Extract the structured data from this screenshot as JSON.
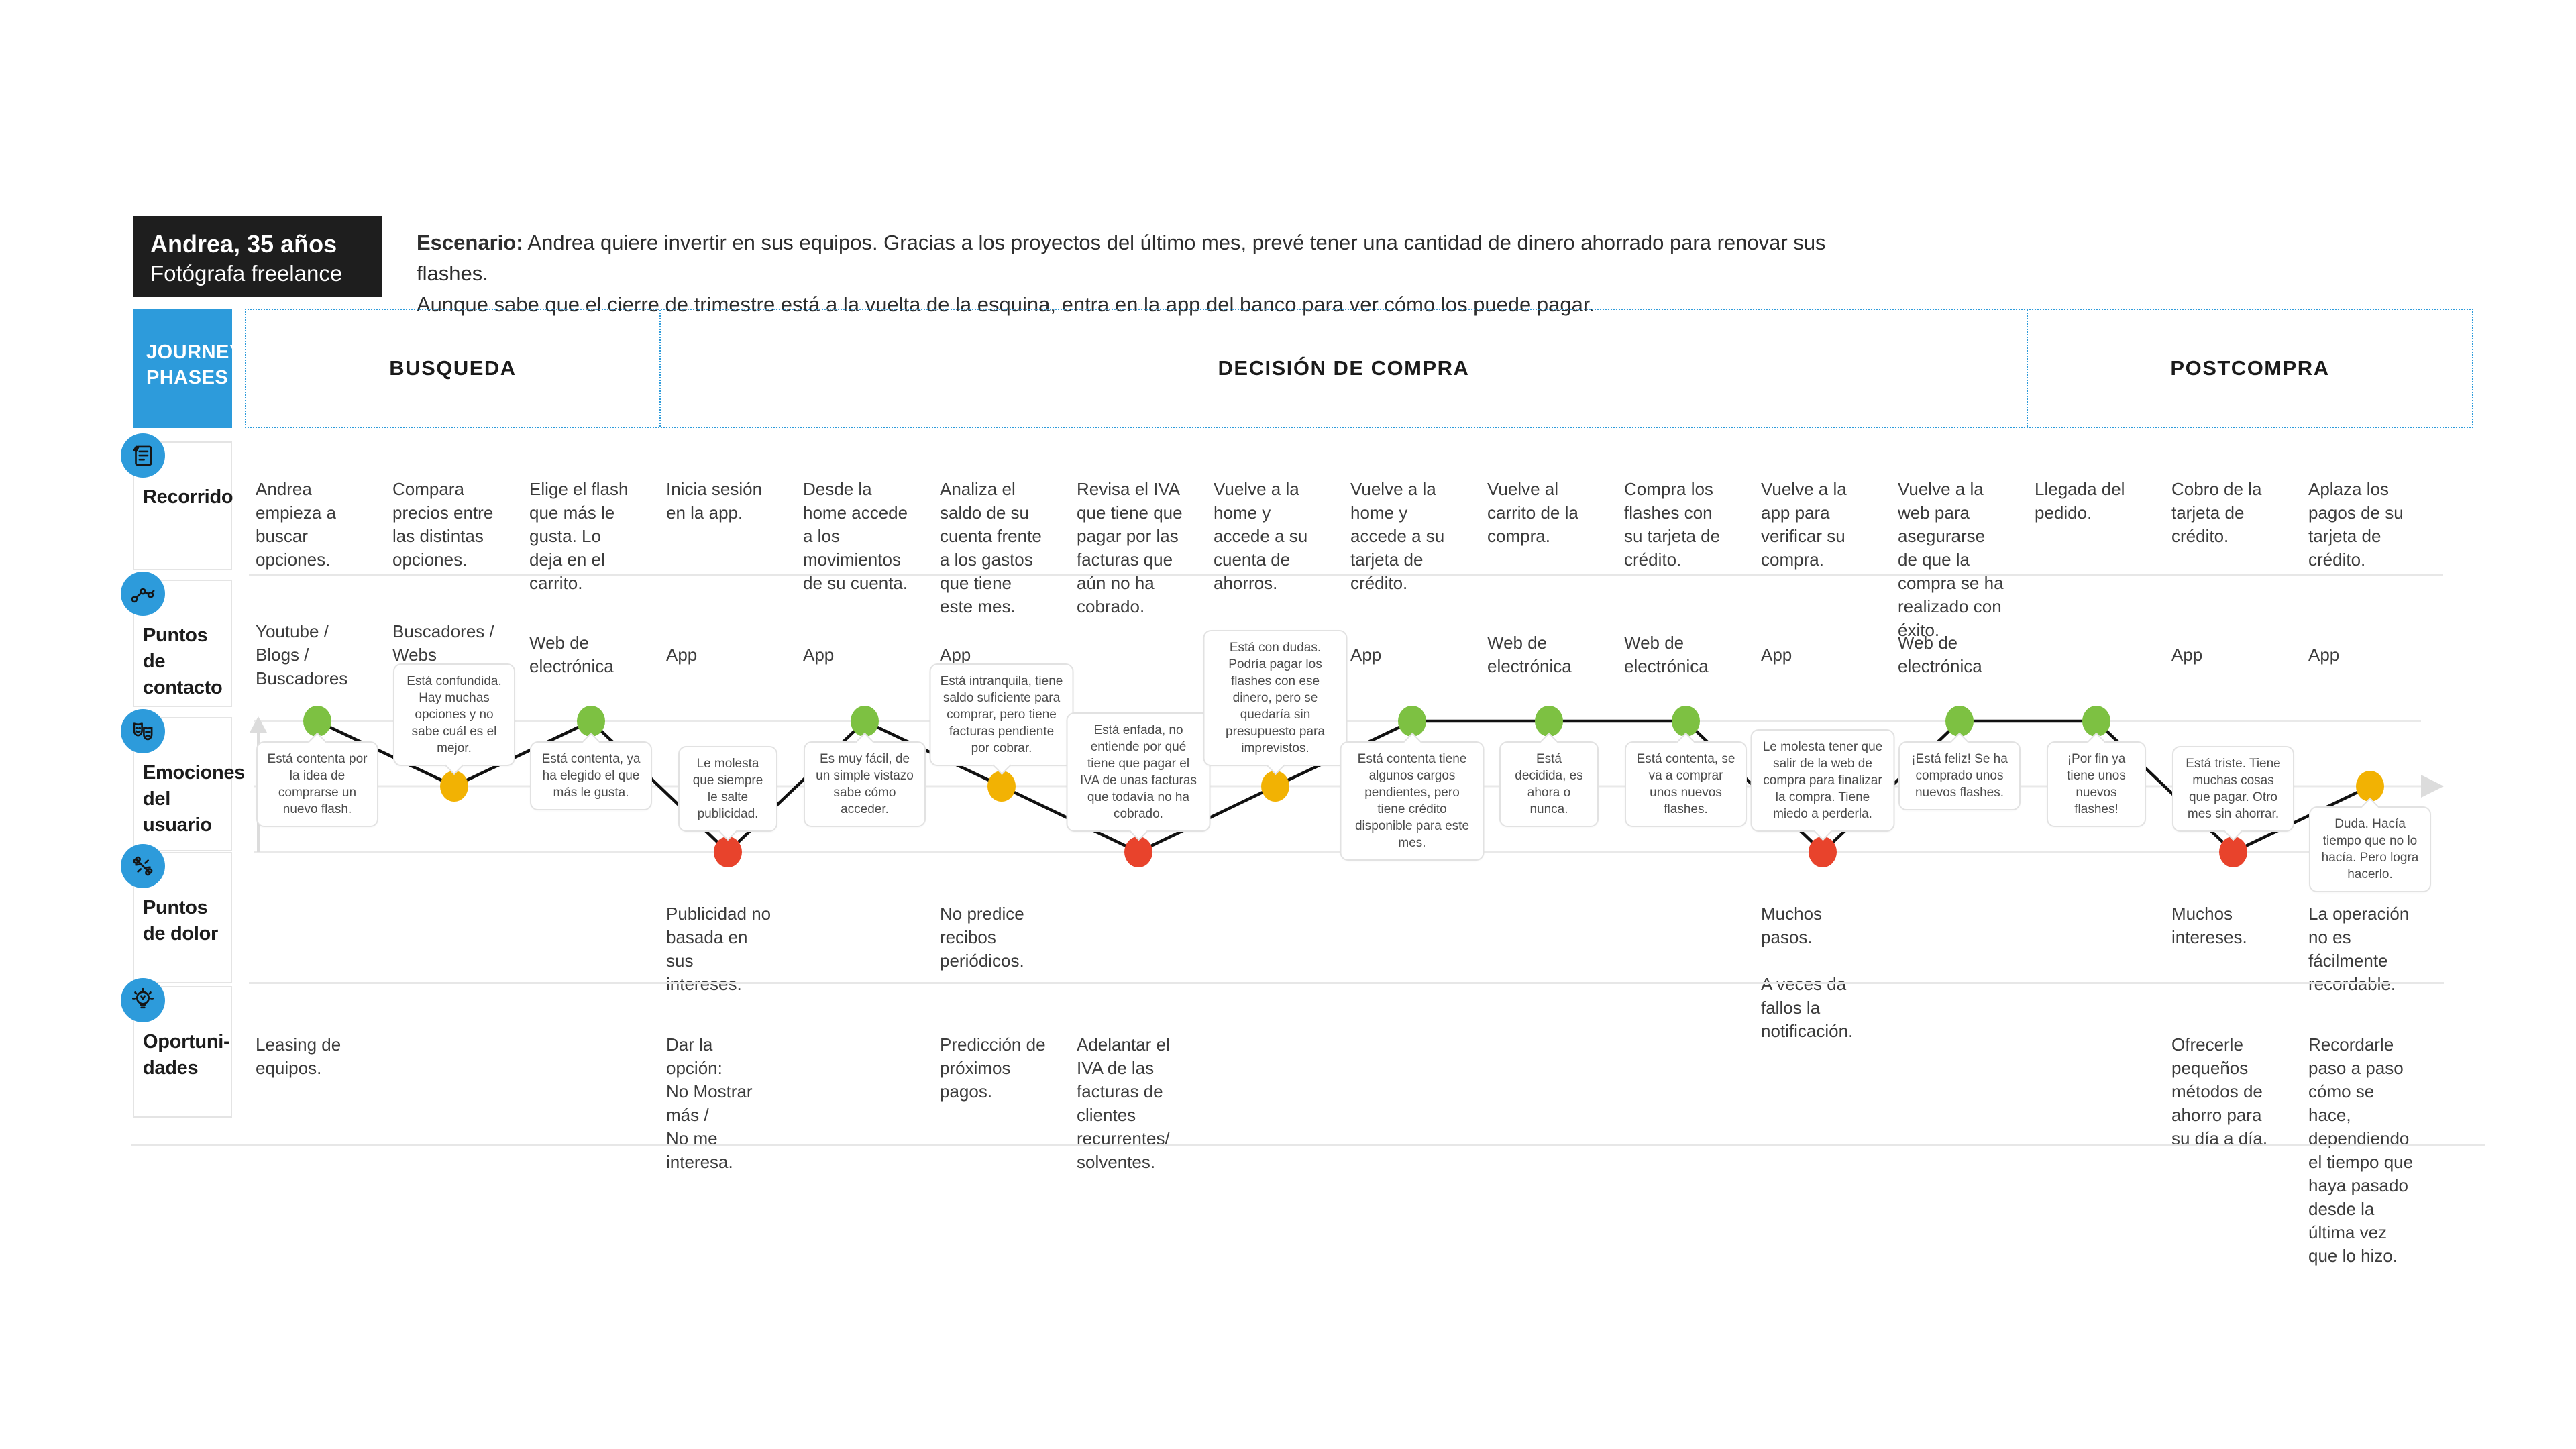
{
  "persona": {
    "name": "Andrea, 35 años",
    "role": "Fotógrafa freelance"
  },
  "scenario": {
    "label": "Escenario:",
    "line1": "Andrea quiere invertir en sus equipos. Gracias a los proyectos del último mes, prevé tener una cantidad de dinero ahorrado para renovar sus flashes.",
    "line2": "Aunque sabe que el cierre de trimestre está a la vuelta de la esquina, entra en la app del banco para ver cómo los puede pagar."
  },
  "journey_phases_label": "JOURNEY\nPHASES",
  "phases": [
    {
      "label": "BUSQUEDA",
      "columns": 3
    },
    {
      "label": "DECISIÓN DE COMPRA",
      "columns": 10
    },
    {
      "label": "POSTCOMPRA",
      "columns": 3
    }
  ],
  "row_labels": [
    {
      "id": "recorrido",
      "label": "Recorrido",
      "icon": "notes-icon"
    },
    {
      "id": "contacto",
      "label": "Puntos de\ncontacto",
      "icon": "touchpoints-icon"
    },
    {
      "id": "emociones",
      "label": "Emociones\ndel usuario",
      "icon": "masks-icon"
    },
    {
      "id": "dolor",
      "label": "Puntos\nde dolor",
      "icon": "pain-icon"
    },
    {
      "id": "oportunidades",
      "label": "Oportuni-\ndades",
      "icon": "lightbulb-icon"
    }
  ],
  "colors": {
    "accent_blue": "#2D9BDB",
    "positive": "#7DC142",
    "neutral": "#F2B203",
    "negative": "#E8432C",
    "persona_bg": "#1E1E1E",
    "line": "#111111",
    "grid": "#E9E9E9",
    "axis": "#DCDCDC"
  },
  "emotion_levels": {
    "high": "positive",
    "mid": "neutral",
    "low": "negative"
  },
  "columns": [
    {
      "step": "Andrea empieza a buscar opciones.",
      "touchpoint": "Youtube / Blogs /\nBuscadores",
      "emotion": {
        "level": "high",
        "bubble": "Está contenta por la idea de comprarse un nuevo flash.",
        "bubble_position": "below"
      },
      "pain": "",
      "opportunity": "Leasing de equipos."
    },
    {
      "step": "Compara precios entre las distintas opciones.",
      "touchpoint": "Buscadores /\nWebs\nespecializadas",
      "emotion": {
        "level": "mid",
        "bubble": "Está confundida. Hay muchas opciones y no sabe cuál es el mejor.",
        "bubble_position": "above"
      },
      "pain": "",
      "opportunity": ""
    },
    {
      "step": "Elige el flash que más le gusta. Lo deja en el carrito.",
      "touchpoint": "Web de\nelectrónica",
      "emotion": {
        "level": "high",
        "bubble": "Está contenta, ya ha elegido el que más le gusta.",
        "bubble_position": "below"
      },
      "pain": "",
      "opportunity": ""
    },
    {
      "step": "Inicia sesión en la app.",
      "touchpoint": "App",
      "emotion": {
        "level": "low",
        "bubble": "Le molesta que siempre le salte publicidad.",
        "bubble_position": "above"
      },
      "pain": "Publicidad no basada en sus intereses.",
      "opportunity": "Dar la opción:\nNo Mostrar más /\nNo me interesa."
    },
    {
      "step": "Desde la home accede a los movimientos de su cuenta.",
      "touchpoint": "App",
      "emotion": {
        "level": "high",
        "bubble": "Es muy fácil, de un simple vistazo sabe cómo acceder.",
        "bubble_position": "below"
      },
      "pain": "",
      "opportunity": ""
    },
    {
      "step": "Analiza el saldo de su cuenta frente a los gastos que tiene este mes.",
      "touchpoint": "App",
      "emotion": {
        "level": "mid",
        "bubble": "Está intranquila, tiene saldo suficiente para comprar, pero tiene facturas pendiente por cobrar.",
        "bubble_position": "above"
      },
      "pain": "No predice recibos periódicos.",
      "opportunity": "Predicción de próximos pagos."
    },
    {
      "step": "Revisa el IVA que tiene que pagar por las facturas que aún no ha cobrado.",
      "touchpoint": "",
      "emotion": {
        "level": "low",
        "bubble": "Está enfada, no entiende por qué tiene que pagar el IVA de unas facturas que todavía no ha cobrado.",
        "bubble_position": "above"
      },
      "pain": "",
      "opportunity": "Adelantar el IVA de las facturas de clientes recurrentes/ solventes."
    },
    {
      "step": "Vuelve a la home y accede a su cuenta de ahorros.",
      "touchpoint": "App",
      "emotion": {
        "level": "mid",
        "bubble": "Está con dudas. Podría pagar los flashes con ese dinero, pero se quedaría sin presupuesto para imprevistos.",
        "bubble_position": "above"
      },
      "pain": "",
      "opportunity": ""
    },
    {
      "step": "Vuelve a la home y accede a su tarjeta de crédito.",
      "touchpoint": "App",
      "emotion": {
        "level": "high",
        "bubble": "Está contenta tiene algunos cargos pendientes, pero tiene crédito disponible para este mes.",
        "bubble_position": "below"
      },
      "pain": "",
      "opportunity": ""
    },
    {
      "step": "Vuelve al carrito de la compra.",
      "touchpoint": "Web de\nelectrónica",
      "emotion": {
        "level": "high",
        "bubble": "Está decidida, es ahora o nunca.",
        "bubble_position": "below"
      },
      "pain": "",
      "opportunity": ""
    },
    {
      "step": "Compra los flashes con su tarjeta de crédito.",
      "touchpoint": "Web de\nelectrónica",
      "emotion": {
        "level": "high",
        "bubble": "Está contenta, se va a comprar unos nuevos flashes.",
        "bubble_position": "below"
      },
      "pain": "",
      "opportunity": ""
    },
    {
      "step": "Vuelve a la app para verificar su compra.",
      "touchpoint": "App",
      "emotion": {
        "level": "low",
        "bubble": "Le molesta tener que salir de la web de compra para finalizar la compra. Tiene miedo a perderla.",
        "bubble_position": "above"
      },
      "pain": "Muchos pasos.\n\nA veces da fallos la notificación.",
      "opportunity": ""
    },
    {
      "step": "Vuelve a la web para asegurarse de que la compra se ha realizado con éxito.",
      "touchpoint": "Web de\nelectrónica",
      "emotion": {
        "level": "high",
        "bubble": "¡Está feliz! Se ha comprado unos nuevos flashes.",
        "bubble_position": "below"
      },
      "pain": "",
      "opportunity": ""
    },
    {
      "step": "Llegada del pedido.",
      "touchpoint": "",
      "emotion": {
        "level": "high",
        "bubble": "¡Por fin ya tiene unos nuevos flashes!",
        "bubble_position": "below"
      },
      "pain": "",
      "opportunity": ""
    },
    {
      "step": "Cobro de la tarjeta de crédito.",
      "touchpoint": "App",
      "emotion": {
        "level": "low",
        "bubble": "Está triste. Tiene muchas cosas que pagar. Otro mes sin ahorrar.",
        "bubble_position": "above"
      },
      "pain": "Muchos intereses.",
      "opportunity": "Ofrecerle pequeños métodos de ahorro para su día a día."
    },
    {
      "step": "Aplaza los pagos de su tarjeta de crédito.",
      "touchpoint": "App",
      "emotion": {
        "level": "mid",
        "bubble": "Duda. Hacía tiempo que no lo hacía. Pero logra hacerlo.",
        "bubble_position": "below"
      },
      "pain": "La operación no es fácilmente recordable.",
      "opportunity": "Recordarle paso a paso cómo se hace, dependiendo el tiempo que haya pasado desde la última vez que lo hizo."
    }
  ]
}
